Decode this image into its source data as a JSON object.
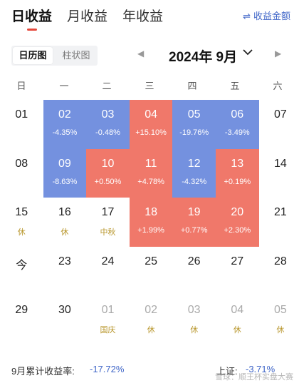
{
  "tabs": [
    {
      "label": "日收益",
      "active": true
    },
    {
      "label": "月收益",
      "active": false
    },
    {
      "label": "年收益",
      "active": false
    }
  ],
  "toggle": {
    "label": "收益金额",
    "icon": "swap-icon"
  },
  "view": {
    "calendar_label": "日历图",
    "bar_label": "柱状图",
    "active": "calendar"
  },
  "month": {
    "label": "2024年 9月"
  },
  "weekdays": [
    "日",
    "一",
    "二",
    "三",
    "四",
    "五",
    "六"
  ],
  "colors": {
    "up": "#f0786a",
    "down": "#7491df",
    "tag": "#b8962b",
    "accent": "#3e64c7",
    "tab_active": "#e5483b"
  },
  "weeks": [
    [
      {
        "day": "01",
        "state": "normal"
      },
      {
        "day": "02",
        "state": "down",
        "pct": "-4.35%"
      },
      {
        "day": "03",
        "state": "down",
        "pct": "-0.48%"
      },
      {
        "day": "04",
        "state": "up",
        "pct": "+15.10%"
      },
      {
        "day": "05",
        "state": "down",
        "pct": "-19.76%"
      },
      {
        "day": "06",
        "state": "down",
        "pct": "-3.49%"
      },
      {
        "day": "07",
        "state": "normal"
      }
    ],
    [
      {
        "day": "08",
        "state": "normal"
      },
      {
        "day": "09",
        "state": "down",
        "pct": "-8.63%"
      },
      {
        "day": "10",
        "state": "up",
        "pct": "+0.50%"
      },
      {
        "day": "11",
        "state": "up",
        "pct": "+4.78%"
      },
      {
        "day": "12",
        "state": "down",
        "pct": "-4.32%"
      },
      {
        "day": "13",
        "state": "up",
        "pct": "+0.19%"
      },
      {
        "day": "14",
        "state": "normal"
      }
    ],
    [
      {
        "day": "15",
        "state": "normal",
        "tag": "休"
      },
      {
        "day": "16",
        "state": "normal",
        "tag": "休"
      },
      {
        "day": "17",
        "state": "normal",
        "tag": "中秋"
      },
      {
        "day": "18",
        "state": "up",
        "pct": "+1.99%"
      },
      {
        "day": "19",
        "state": "up",
        "pct": "+0.77%"
      },
      {
        "day": "20",
        "state": "up",
        "pct": "+2.30%"
      },
      {
        "day": "21",
        "state": "normal"
      }
    ],
    [
      {
        "day": "今",
        "state": "normal"
      },
      {
        "day": "23",
        "state": "normal"
      },
      {
        "day": "24",
        "state": "normal"
      },
      {
        "day": "25",
        "state": "normal"
      },
      {
        "day": "26",
        "state": "normal"
      },
      {
        "day": "27",
        "state": "normal"
      },
      {
        "day": "28",
        "state": "normal"
      }
    ],
    [
      {
        "day": "29",
        "state": "normal"
      },
      {
        "day": "30",
        "state": "normal"
      },
      {
        "day": "01",
        "state": "muted",
        "tag": "国庆"
      },
      {
        "day": "02",
        "state": "muted",
        "tag": "休"
      },
      {
        "day": "03",
        "state": "muted",
        "tag": "休"
      },
      {
        "day": "04",
        "state": "muted",
        "tag": "休"
      },
      {
        "day": "05",
        "state": "muted",
        "tag": "休"
      }
    ]
  ],
  "footer": {
    "label": "9月累计收益率:",
    "value": "-17.72%",
    "index_label": "上证:",
    "index_value": "-3.71%"
  },
  "watermark": "雪球：顺王杯实盘大赛"
}
